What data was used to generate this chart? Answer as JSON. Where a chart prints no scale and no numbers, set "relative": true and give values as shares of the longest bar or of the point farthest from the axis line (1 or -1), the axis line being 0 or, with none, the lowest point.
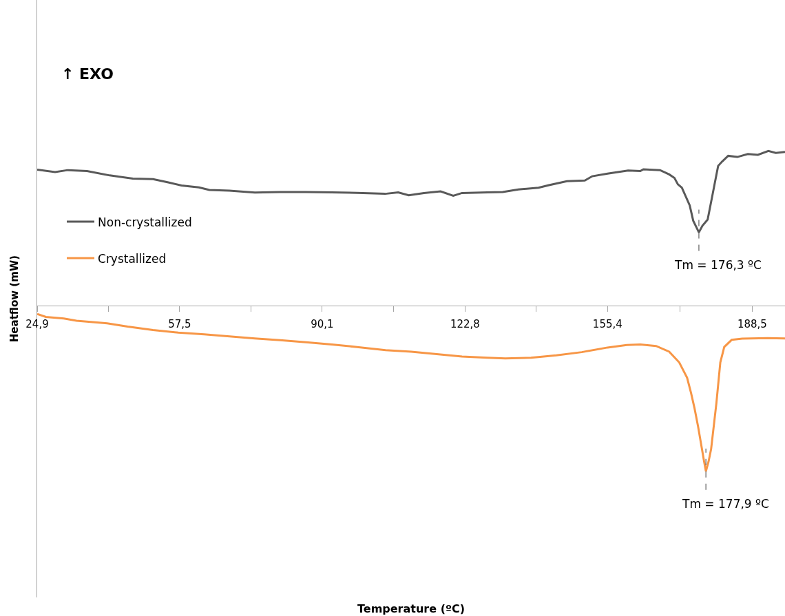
{
  "chart_data": {
    "type": "line",
    "relative": true,
    "ylabel": "Heatflow (mW)",
    "xlim": [
      24.9,
      196
    ],
    "xticks": [
      {
        "value": 24.9,
        "label": "24,9"
      },
      {
        "value": 41.2,
        "label": null
      },
      {
        "value": 57.5,
        "label": "57,5"
      },
      {
        "value": 73.8,
        "label": null
      },
      {
        "value": 90.1,
        "label": "90,1"
      },
      {
        "value": 106.5,
        "label": null
      },
      {
        "value": 122.8,
        "label": "122,8"
      },
      {
        "value": 139.1,
        "label": null
      },
      {
        "value": 155.4,
        "label": "155,4"
      },
      {
        "value": 172.0,
        "label": null
      },
      {
        "value": 188.5,
        "label": "188,5"
      }
    ],
    "tick_labels": "x",
    "legend": "left",
    "annotations": [
      "↑ EXO",
      "Temperature (ºC)",
      {
        "text": "Tm = 176,3 ºC",
        "x": 176.3,
        "y": 0.44
      },
      {
        "text": "Tm = 177,9 ºC",
        "x": 177.9,
        "y": -1
      }
    ],
    "series": [
      {
        "name": "Non-crystallized",
        "color": "#595959",
        "x": [
          24.9,
          29.0,
          31.9,
          36.3,
          41.5,
          46.8,
          51.4,
          54.9,
          57.9,
          61.9,
          64.3,
          68.9,
          74.7,
          80.5,
          86.4,
          92.3,
          98.1,
          104.5,
          107.5,
          109.9,
          113.4,
          117.2,
          120.1,
          122.1,
          127.9,
          131.4,
          135.0,
          139.6,
          142.0,
          146.1,
          150.2,
          151.9,
          155.4,
          160.1,
          162.9,
          163.6,
          167.4,
          169.5,
          170.7,
          171.5,
          172.4,
          174.2,
          175.0,
          176.3,
          177.1,
          178.3,
          179.5,
          180.7,
          181.6,
          183.0,
          185.1,
          187.5,
          189.8,
          192.2,
          193.9,
          196.0
        ],
        "values": [
          0.818,
          0.803,
          0.815,
          0.809,
          0.783,
          0.764,
          0.761,
          0.741,
          0.722,
          0.711,
          0.695,
          0.691,
          0.68,
          0.683,
          0.683,
          0.681,
          0.678,
          0.672,
          0.681,
          0.663,
          0.677,
          0.687,
          0.66,
          0.677,
          0.681,
          0.683,
          0.698,
          0.709,
          0.724,
          0.748,
          0.752,
          0.778,
          0.794,
          0.812,
          0.809,
          0.82,
          0.815,
          0.789,
          0.768,
          0.729,
          0.709,
          0.602,
          0.51,
          0.44,
          0.479,
          0.517,
          0.678,
          0.84,
          0.866,
          0.901,
          0.894,
          0.912,
          0.907,
          0.93,
          0.918,
          0.924
        ]
      },
      {
        "name": "Crystallized",
        "color": "#f79646",
        "x": [
          24.9,
          26.9,
          31.0,
          33.9,
          40.9,
          45.6,
          51.4,
          57.2,
          63.1,
          68.9,
          74.7,
          80.5,
          86.4,
          92.3,
          98.1,
          104.6,
          110.5,
          116.3,
          122.1,
          127.9,
          132.0,
          137.9,
          143.7,
          149.5,
          155.4,
          159.8,
          162.9,
          166.5,
          169.5,
          171.8,
          173.6,
          174.5,
          175.3,
          176.1,
          176.8,
          177.4,
          177.9,
          178.5,
          179.1,
          179.7,
          180.3,
          181.2,
          182.1,
          183.8,
          186.2,
          192.0,
          196.0
        ],
        "values": [
          -0.052,
          -0.07,
          -0.079,
          -0.093,
          -0.108,
          -0.128,
          -0.149,
          -0.164,
          -0.175,
          -0.187,
          -0.199,
          -0.21,
          -0.222,
          -0.236,
          -0.251,
          -0.27,
          -0.279,
          -0.294,
          -0.308,
          -0.316,
          -0.32,
          -0.316,
          -0.301,
          -0.282,
          -0.254,
          -0.239,
          -0.236,
          -0.245,
          -0.279,
          -0.344,
          -0.436,
          -0.528,
          -0.62,
          -0.728,
          -0.835,
          -0.927,
          -1,
          -0.943,
          -0.865,
          -0.728,
          -0.59,
          -0.344,
          -0.251,
          -0.208,
          -0.201,
          -0.197,
          -0.199
        ]
      }
    ]
  }
}
